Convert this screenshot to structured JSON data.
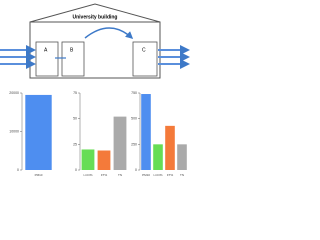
{
  "diagram": {
    "title": "University building",
    "rooms": [
      "A",
      "B",
      "C"
    ]
  },
  "chart_data": [
    {
      "type": "bar",
      "categories": [
        "PM10"
      ],
      "values": [
        19500
      ],
      "colors": [
        "#4e8ef0"
      ],
      "ylim": [
        0,
        20000
      ],
      "yticks": [
        0,
        10000,
        20000
      ]
    },
    {
      "type": "bar",
      "categories": [
        "t-CO%",
        "FT%",
        "TN"
      ],
      "values": [
        20,
        19,
        52
      ],
      "colors": [
        "#66dd55",
        "#f47a3a",
        "#aaaaaa"
      ],
      "ylim": [
        0,
        75
      ],
      "yticks": [
        0,
        25,
        50,
        75
      ]
    },
    {
      "type": "bar",
      "categories": [
        "PM10",
        "t-CO%",
        "FT%",
        "TN"
      ],
      "values": [
        740,
        250,
        430,
        250
      ],
      "colors": [
        "#4e8ef0",
        "#66dd55",
        "#f47a3a",
        "#aaaaaa"
      ],
      "ylim": [
        0,
        750
      ],
      "yticks": [
        0,
        250,
        500,
        750
      ]
    }
  ]
}
